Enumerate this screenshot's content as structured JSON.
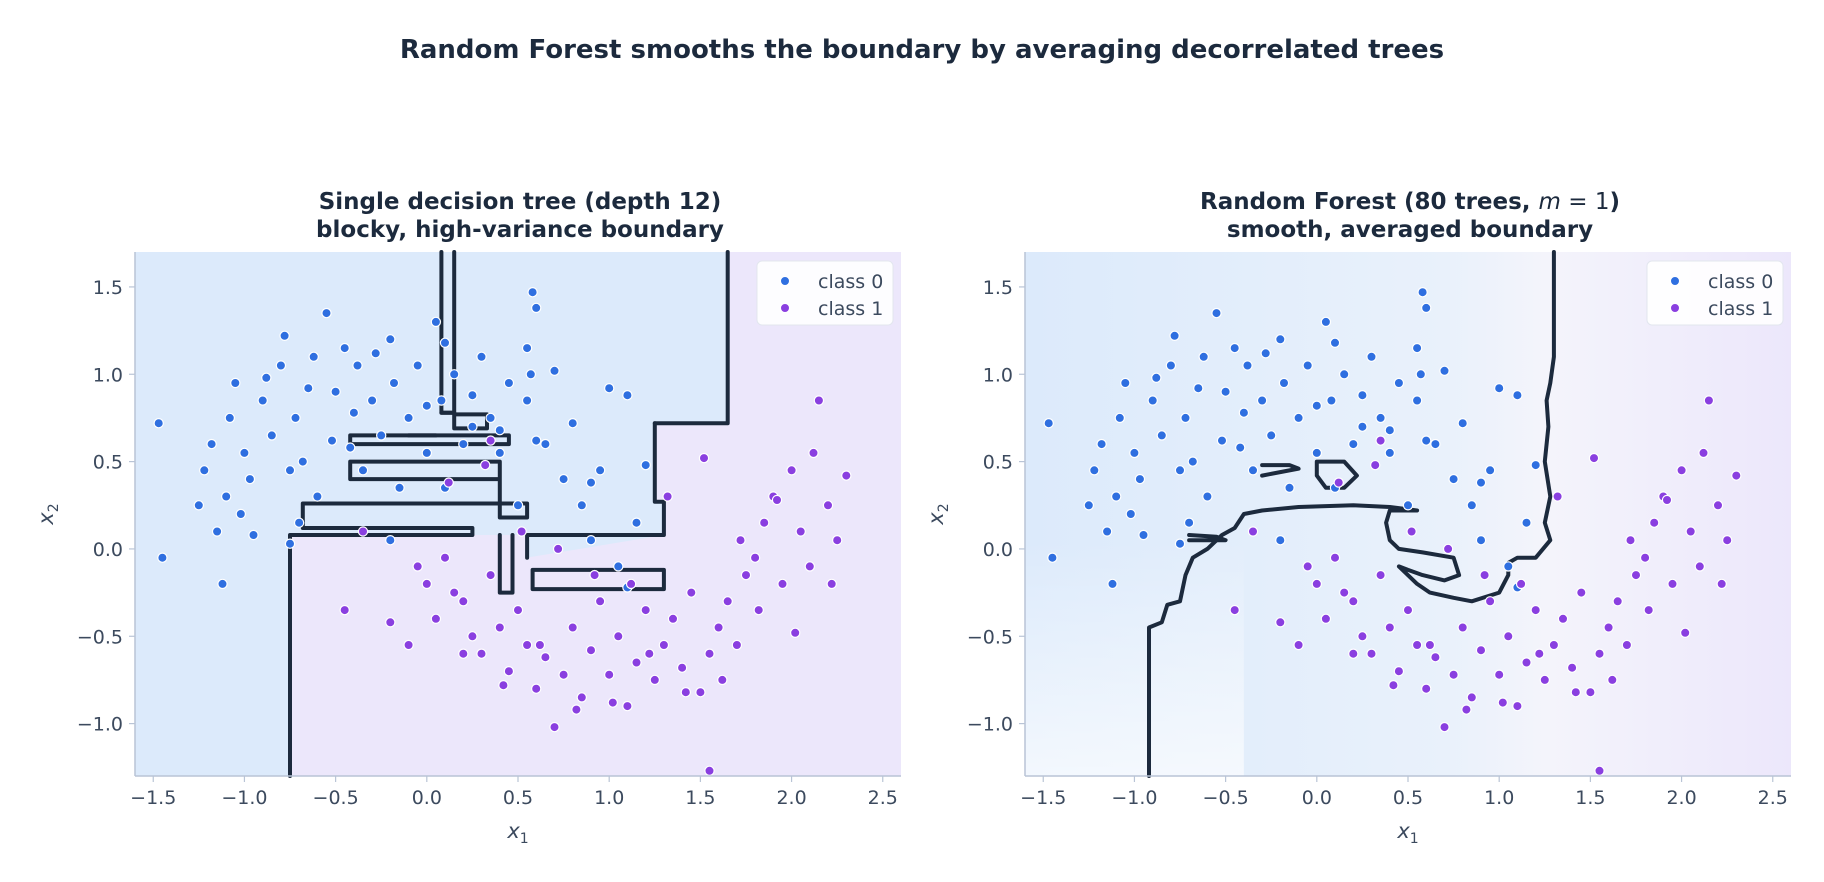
{
  "figure": {
    "suptitle": "Random Forest smooths the boundary by averaging decorrelated trees"
  },
  "colors": {
    "class0": "#2f6fe0",
    "class1": "#8a3fe0",
    "region0": "#dceafb",
    "region1": "#ece7fb",
    "boundary": "#1c2a3d",
    "title": "#1c2a3d",
    "axis": "#b9c4d6",
    "tick_text": "#3c4a5e"
  },
  "chart_data": [
    {
      "type": "scatter",
      "title_line1": "Single decision tree (depth 12)",
      "title_line2": "blocky, high-variance boundary",
      "xlabel": "x1",
      "ylabel": "x2",
      "xlim": [
        -1.6,
        2.6
      ],
      "ylim": [
        -1.3,
        1.7
      ],
      "xticks": [
        -1.5,
        -1.0,
        -0.5,
        0.0,
        0.5,
        1.0,
        1.5,
        2.0,
        2.5
      ],
      "yticks": [
        -1.0,
        -0.5,
        0.0,
        0.5,
        1.0,
        1.5
      ],
      "legend_position": "top-right",
      "legend": [
        "class 0",
        "class 1"
      ],
      "grid": false,
      "decision_regions": "class 0 region upper-left, class 1 region lower-right; blocky axis-aligned boundary",
      "series": [
        {
          "name": "class 0",
          "x": [
            -1.47,
            -1.45,
            -1.25,
            -1.22,
            -1.18,
            -1.15,
            -1.12,
            -1.1,
            -1.08,
            -1.05,
            -1.02,
            -1.0,
            -0.97,
            -0.95,
            -0.9,
            -0.88,
            -0.85,
            -0.8,
            -0.78,
            -0.75,
            -0.72,
            -0.7,
            -0.68,
            -0.65,
            -0.62,
            -0.6,
            -0.55,
            -0.52,
            -0.5,
            -0.45,
            -0.42,
            -0.4,
            -0.38,
            -0.35,
            -0.3,
            -0.28,
            -0.25,
            -0.2,
            -0.18,
            -0.15,
            -0.1,
            -0.05,
            0.0,
            0.05,
            0.08,
            0.1,
            0.15,
            0.2,
            0.25,
            0.3,
            0.35,
            0.4,
            0.45,
            0.5,
            0.55,
            0.58,
            0.6,
            0.65,
            0.7,
            0.75,
            0.8,
            0.85,
            0.9,
            0.95,
            1.0,
            1.05,
            1.1,
            1.15,
            1.2,
            0.55,
            0.57,
            -0.75,
            0.1,
            0.25,
            0.4,
            0.6,
            0.9,
            1.1,
            -0.2,
            0.0
          ],
          "y": [
            0.72,
            -0.05,
            0.25,
            0.45,
            0.6,
            0.1,
            -0.2,
            0.3,
            0.75,
            0.95,
            0.2,
            0.55,
            0.4,
            0.08,
            0.85,
            0.98,
            0.65,
            1.05,
            1.22,
            0.45,
            0.75,
            0.15,
            0.5,
            0.92,
            1.1,
            0.3,
            1.35,
            0.62,
            0.9,
            1.15,
            0.58,
            0.78,
            1.05,
            0.45,
            0.85,
            1.12,
            0.65,
            1.2,
            0.95,
            0.35,
            0.75,
            1.05,
            0.55,
            1.3,
            0.85,
            0.35,
            1.0,
            0.6,
            0.7,
            1.1,
            0.75,
            0.55,
            0.95,
            0.25,
            1.15,
            1.47,
            1.38,
            0.6,
            1.02,
            0.4,
            0.72,
            0.25,
            0.05,
            0.45,
            0.92,
            -0.1,
            0.88,
            0.15,
            0.48,
            0.85,
            1.0,
            0.03,
            1.18,
            0.88,
            0.68,
            0.62,
            0.38,
            -0.22,
            0.05,
            0.82
          ]
        },
        {
          "name": "class 1",
          "x": [
            -0.45,
            -0.2,
            -0.1,
            -0.05,
            0.0,
            0.05,
            0.1,
            0.15,
            0.2,
            0.25,
            0.3,
            0.35,
            0.4,
            0.45,
            0.5,
            0.55,
            0.6,
            0.65,
            0.7,
            0.75,
            0.8,
            0.85,
            0.9,
            0.95,
            1.0,
            1.05,
            1.1,
            1.15,
            1.2,
            1.25,
            1.3,
            1.35,
            1.4,
            1.45,
            1.5,
            1.55,
            1.6,
            1.65,
            1.7,
            1.75,
            1.8,
            1.85,
            1.9,
            1.95,
            2.0,
            2.05,
            2.1,
            2.15,
            2.2,
            2.25,
            2.3,
            -0.35,
            0.12,
            0.32,
            0.52,
            0.72,
            0.92,
            1.12,
            1.32,
            1.52,
            1.72,
            1.92,
            2.12,
            0.2,
            0.42,
            0.62,
            0.82,
            1.02,
            1.22,
            1.42,
            1.62,
            1.82,
            2.02,
            2.22,
            0.35,
            1.55
          ],
          "y": [
            -0.35,
            -0.42,
            -0.55,
            -0.1,
            -0.2,
            -0.4,
            -0.05,
            -0.25,
            -0.3,
            -0.5,
            -0.6,
            -0.15,
            -0.45,
            -0.7,
            -0.35,
            -0.55,
            -0.8,
            -0.62,
            -1.02,
            -0.72,
            -0.45,
            -0.85,
            -0.58,
            -0.3,
            -0.72,
            -0.5,
            -0.9,
            -0.65,
            -0.35,
            -0.75,
            -0.55,
            -0.4,
            -0.68,
            -0.25,
            -0.82,
            -0.6,
            -0.45,
            -0.3,
            -0.55,
            -0.15,
            -0.05,
            0.15,
            0.3,
            -0.2,
            0.45,
            0.1,
            -0.1,
            0.85,
            0.25,
            0.05,
            0.42,
            0.1,
            0.38,
            0.48,
            0.1,
            0.0,
            -0.15,
            -0.2,
            0.3,
            0.52,
            0.05,
            0.28,
            0.55,
            -0.6,
            -0.78,
            -0.55,
            -0.92,
            -0.88,
            -0.6,
            -0.82,
            -0.75,
            -0.35,
            -0.48,
            -0.2,
            0.62,
            -1.27
          ]
        }
      ],
      "boundary_path": [
        [
          [
            0.08,
            1.7
          ],
          [
            0.08,
            0.78
          ],
          [
            0.15,
            0.78
          ],
          [
            0.15,
            1.7
          ]
        ],
        [
          [
            0.08,
            0.78
          ],
          [
            0.15,
            0.78
          ]
        ],
        [
          [
            -0.75,
            -1.3
          ],
          [
            -0.75,
            0.08
          ],
          [
            0.25,
            0.08
          ],
          [
            0.25,
            0.12
          ],
          [
            -0.68,
            0.12
          ],
          [
            -0.68,
            0.26
          ],
          [
            0.55,
            0.26
          ],
          [
            0.55,
            0.18
          ],
          [
            0.4,
            0.18
          ],
          [
            0.4,
            0.5
          ],
          [
            -0.42,
            0.5
          ],
          [
            -0.42,
            0.4
          ],
          [
            0.4,
            0.4
          ]
        ],
        [
          [
            1.25,
            0.72
          ],
          [
            1.65,
            0.72
          ],
          [
            1.65,
            1.7
          ]
        ],
        [
          [
            1.25,
            0.72
          ],
          [
            1.25,
            0.27
          ],
          [
            1.3,
            0.27
          ],
          [
            1.3,
            0.08
          ],
          [
            0.55,
            0.08
          ],
          [
            0.55,
            -0.05
          ]
        ],
        [
          [
            0.4,
            0.08
          ],
          [
            0.4,
            -0.25
          ],
          [
            0.47,
            -0.25
          ],
          [
            0.47,
            0.08
          ]
        ],
        [
          [
            0.58,
            -0.12
          ],
          [
            1.3,
            -0.12
          ],
          [
            1.3,
            -0.23
          ],
          [
            0.58,
            -0.23
          ],
          [
            0.58,
            -0.12
          ]
        ],
        [
          [
            -0.42,
            0.65
          ],
          [
            0.45,
            0.65
          ],
          [
            0.45,
            0.6
          ],
          [
            -0.42,
            0.6
          ],
          [
            -0.42,
            0.65
          ]
        ],
        [
          [
            0.15,
            0.77
          ],
          [
            0.33,
            0.77
          ],
          [
            0.33,
            0.69
          ],
          [
            0.15,
            0.69
          ],
          [
            0.15,
            0.77
          ]
        ],
        [
          [
            0.05,
            0.65
          ],
          [
            -0.1,
            0.65
          ]
        ]
      ]
    },
    {
      "type": "scatter",
      "title_line1": "Random Forest (80 trees, m = 1)",
      "title_line2": "smooth, averaged boundary",
      "xlabel": "x1",
      "ylabel": "x2",
      "xlim": [
        -1.6,
        2.6
      ],
      "ylim": [
        -1.3,
        1.7
      ],
      "xticks": [
        -1.5,
        -1.0,
        -0.5,
        0.0,
        0.5,
        1.0,
        1.5,
        2.0,
        2.5
      ],
      "yticks": [
        -1.0,
        -0.5,
        0.0,
        0.5,
        1.0,
        1.5
      ],
      "legend_position": "top-right",
      "legend": [
        "class 0",
        "class 1"
      ],
      "grid": false,
      "decision_regions": "class 0 region upper-left, class 1 region lower-right; smooth averaged boundary",
      "series": "same as left panel",
      "boundary_path": [
        [
          [
            -0.92,
            -1.3
          ],
          [
            -0.92,
            -0.45
          ],
          [
            -0.85,
            -0.42
          ],
          [
            -0.82,
            -0.32
          ],
          [
            -0.75,
            -0.3
          ],
          [
            -0.72,
            -0.15
          ],
          [
            -0.68,
            -0.05
          ],
          [
            -0.6,
            0.0
          ],
          [
            -0.52,
            0.08
          ],
          [
            -0.45,
            0.12
          ],
          [
            -0.4,
            0.2
          ],
          [
            -0.3,
            0.22
          ],
          [
            -0.1,
            0.24
          ],
          [
            0.2,
            0.25
          ],
          [
            0.4,
            0.24
          ],
          [
            0.55,
            0.22
          ],
          [
            0.4,
            0.22
          ],
          [
            0.38,
            0.15
          ],
          [
            0.4,
            0.05
          ],
          [
            0.45,
            0.0
          ],
          [
            0.58,
            -0.02
          ],
          [
            0.75,
            -0.05
          ],
          [
            0.78,
            -0.15
          ],
          [
            0.7,
            -0.18
          ],
          [
            0.58,
            -0.15
          ],
          [
            0.5,
            -0.12
          ],
          [
            0.45,
            -0.1
          ],
          [
            0.55,
            -0.2
          ],
          [
            0.62,
            -0.25
          ],
          [
            0.75,
            -0.28
          ],
          [
            0.85,
            -0.3
          ],
          [
            1.0,
            -0.25
          ],
          [
            1.05,
            -0.15
          ],
          [
            1.05,
            -0.08
          ],
          [
            1.1,
            -0.05
          ],
          [
            1.2,
            -0.05
          ],
          [
            1.28,
            0.05
          ],
          [
            1.25,
            0.15
          ],
          [
            1.28,
            0.3
          ],
          [
            1.25,
            0.5
          ],
          [
            1.27,
            0.7
          ],
          [
            1.26,
            0.85
          ],
          [
            1.28,
            0.95
          ],
          [
            1.3,
            1.1
          ],
          [
            1.3,
            1.7
          ]
        ],
        [
          [
            -0.3,
            0.42
          ],
          [
            -0.1,
            0.46
          ],
          [
            -0.15,
            0.48
          ],
          [
            -0.3,
            0.48
          ]
        ],
        [
          [
            -0.7,
            0.08
          ],
          [
            -0.55,
            0.07
          ],
          [
            -0.5,
            0.05
          ],
          [
            -0.7,
            0.05
          ]
        ],
        [
          [
            0.0,
            0.5
          ],
          [
            0.15,
            0.5
          ],
          [
            0.22,
            0.42
          ],
          [
            0.15,
            0.35
          ],
          [
            0.05,
            0.35
          ],
          [
            0.0,
            0.42
          ],
          [
            0.0,
            0.5
          ]
        ]
      ]
    }
  ]
}
